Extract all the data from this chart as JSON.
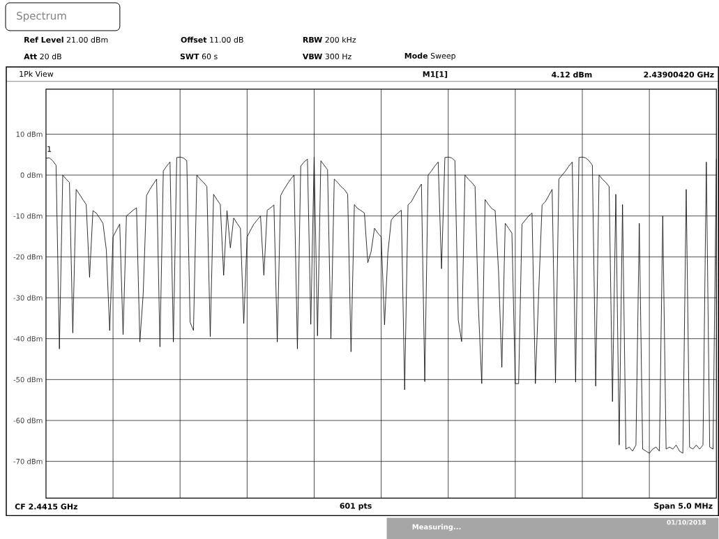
{
  "chart_data": {
    "type": "line",
    "categories": [
      null,
      null,
      null,
      null,
      null,
      null,
      null,
      null,
      null,
      null,
      null,
      null,
      null,
      null,
      null,
      null,
      null,
      null,
      null,
      null,
      null,
      null,
      null,
      null,
      null,
      null,
      null,
      null,
      null,
      null,
      null,
      null,
      null,
      null,
      null,
      null,
      null,
      null,
      null,
      null,
      null,
      null,
      null,
      null,
      null,
      null,
      null,
      null,
      null,
      null,
      null,
      null,
      null,
      null,
      null,
      null,
      null,
      null,
      null,
      null,
      null,
      null,
      null,
      null,
      null,
      null,
      null,
      null,
      null,
      null,
      null,
      null,
      null,
      null,
      null,
      null,
      null,
      null,
      null,
      null,
      null,
      null,
      null,
      null,
      null,
      null,
      null,
      null,
      null,
      null,
      null,
      null,
      null,
      null,
      null,
      null,
      null,
      null,
      null,
      null,
      null,
      null,
      null,
      null,
      null,
      null,
      null,
      null,
      null,
      null,
      null,
      null,
      null,
      null,
      null,
      null,
      null,
      null,
      null,
      null,
      null,
      null,
      null,
      null,
      null,
      null,
      null,
      null,
      null,
      null,
      null,
      null,
      null,
      null,
      null,
      null,
      null,
      null,
      null,
      null,
      null,
      null,
      null,
      null,
      null,
      null,
      null,
      null,
      null,
      null,
      null,
      null,
      null,
      null,
      null,
      null,
      null,
      null,
      null,
      null,
      null,
      null,
      null,
      null,
      null,
      null,
      null,
      null,
      null,
      null,
      null,
      null,
      null,
      null,
      null,
      null,
      null,
      null,
      null,
      null,
      null,
      null,
      null,
      null,
      null,
      null,
      null,
      null,
      null,
      null,
      null,
      null,
      null,
      null,
      null,
      null,
      null,
      null,
      null,
      null,
      null
    ],
    "values": [
      4.1,
      4.2,
      3.5,
      2.4,
      -42.5,
      0,
      -1,
      -1.8,
      -38.6,
      -3.5,
      -4.7,
      -6,
      -7.2,
      -25,
      -8.7,
      -9.3,
      -10.5,
      -11.8,
      -18.3,
      -38,
      -15.1,
      -13.5,
      -12,
      -39,
      -10,
      -9.3,
      -8.6,
      -8,
      -40.8,
      -29,
      -5,
      -3.5,
      -2.2,
      -1,
      -42,
      1,
      2.2,
      3.2,
      -40.8,
      4.3,
      4.4,
      4.2,
      3.5,
      -36,
      -38,
      0,
      -1,
      -1.8,
      -2.8,
      -39.5,
      -4.7,
      -6,
      -7.2,
      -24.5,
      -8.7,
      -17.8,
      -10.5,
      -11.8,
      -13,
      -36.3,
      -15.1,
      -13.5,
      -12,
      -11,
      -10,
      -24.5,
      -8.6,
      -8,
      -7.3,
      -40.8,
      -5,
      -3.5,
      -2.2,
      -1,
      0,
      -42.5,
      2.2,
      3.2,
      3.9,
      -36.5,
      4.4,
      -39.3,
      3.5,
      2.4,
      1.3,
      -40,
      -1,
      -1.8,
      -2.8,
      -3.5,
      -4.7,
      -43.2,
      -7.2,
      -8.2,
      -8.7,
      -9.3,
      -21.4,
      -18.7,
      -13,
      -14.2,
      -15.1,
      -36.6,
      -19,
      -11,
      -10,
      -9.3,
      -8.6,
      -52.5,
      -7.3,
      -6.5,
      -5,
      -3.5,
      -2.2,
      -50.5,
      0,
      1,
      2.2,
      3.2,
      -22.9,
      4.3,
      4.4,
      4.2,
      3.5,
      -35.5,
      -40.7,
      0,
      -1,
      -1.8,
      -2.8,
      -32.2,
      -51,
      -6,
      -7.2,
      -8.2,
      -8.7,
      -23.4,
      -47,
      -11.8,
      -13,
      -14.2,
      -51,
      -51,
      -12,
      -11,
      -10,
      -9.3,
      -51,
      -28.4,
      -7.3,
      -6.5,
      -5,
      -3.5,
      -50.8,
      -1,
      0,
      1,
      2.2,
      3.2,
      -50.6,
      4.3,
      4.4,
      4.2,
      3.5,
      2.4,
      -51.6,
      0,
      -1,
      -1.8,
      -2.8,
      -55.4,
      -4.7,
      -66,
      -7.2,
      -67,
      -66.5,
      -67.5,
      -66,
      -11.8,
      -67,
      -67.5,
      -68,
      -67,
      -66.5,
      -67.5,
      -10,
      -67,
      -66.5,
      -67,
      -66,
      -67.5,
      -68,
      -3.5,
      -66.5,
      -67,
      -66,
      -67,
      -66,
      3.2,
      -66.5,
      -67,
      4
    ],
    "color": "#000000",
    "ylim": [
      -79,
      21
    ],
    "yticks": [
      {
        "value": 10,
        "label": "10 dBm"
      },
      {
        "value": 0,
        "label": "0 dBm"
      },
      {
        "value": -10,
        "label": "-10 dBm"
      },
      {
        "value": -20,
        "label": "-20 dBm"
      },
      {
        "value": -30,
        "label": "-30 dBm"
      },
      {
        "value": -40,
        "label": "-40 dBm"
      },
      {
        "value": -50,
        "label": "-50 dBm"
      },
      {
        "value": -60,
        "label": "-60 dBm"
      },
      {
        "value": -70,
        "label": "-70 dBm"
      }
    ],
    "tick_labels": "y",
    "grid": true,
    "line_style": "solid",
    "annotations": [
      "Spectrum",
      "**Ref Level** 21.00 dBm",
      "**Offset** 11.00 dB",
      "**RBW** 200 kHz",
      "**Att** 20 dB",
      "**SWT** 60 s",
      "**VBW** 300 Hz",
      "**Mode** Sweep",
      "1Pk View",
      "M1[1]",
      "4.12 dBm",
      "2.43900420 GHz",
      {
        "text": "1",
        "y": 4.12
      },
      "CF 2.4415 GHz",
      "601 pts",
      "Span 5.0 MHz",
      "Measuring...",
      "01/10/2018"
    ]
  }
}
